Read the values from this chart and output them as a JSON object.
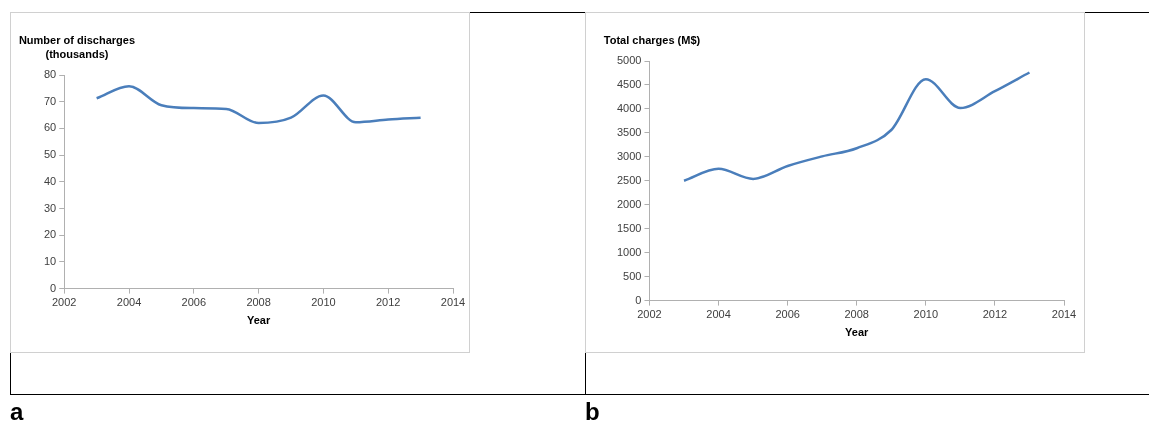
{
  "chart_data": [
    {
      "type": "line",
      "ylabel": "Number of discharges (thousands)",
      "xlabel": "Year",
      "x": [
        2003,
        2004,
        2005,
        2006,
        2007,
        2008,
        2009,
        2010,
        2011,
        2012,
        2013
      ],
      "series": [
        {
          "color": "#4a7ebb",
          "values": [
            71.3,
            75.8,
            68.7,
            67.6,
            67.3,
            62,
            64,
            72.3,
            62.3,
            63.3,
            64
          ]
        }
      ],
      "xlim": [
        2002,
        2014
      ],
      "xticks": [
        2002,
        2004,
        2006,
        2008,
        2010,
        2012,
        2014
      ],
      "ylim": [
        0,
        80
      ],
      "yticks": [
        0,
        10,
        20,
        30,
        40,
        50,
        60,
        70,
        80
      ],
      "grid": false,
      "legend": false,
      "annotations": [
        "a"
      ]
    },
    {
      "type": "line",
      "ylabel": "Total charges (M$)",
      "xlabel": "Year",
      "x": [
        2003,
        2004,
        2005,
        2006,
        2007,
        2008,
        2009,
        2010,
        2011,
        2012,
        2013
      ],
      "series": [
        {
          "color": "#4a7ebb",
          "values": [
            2500,
            2750,
            2540,
            2810,
            3010,
            3180,
            3560,
            4620,
            4020,
            4370,
            4760
          ]
        }
      ],
      "xlim": [
        2002,
        2014
      ],
      "xticks": [
        2002,
        2004,
        2006,
        2008,
        2010,
        2012,
        2014
      ],
      "ylim": [
        0,
        5000
      ],
      "yticks": [
        0,
        500,
        1000,
        1500,
        2000,
        2500,
        3000,
        3500,
        4000,
        4500,
        5000
      ],
      "grid": false,
      "legend": false,
      "annotations": [
        "b"
      ]
    }
  ]
}
